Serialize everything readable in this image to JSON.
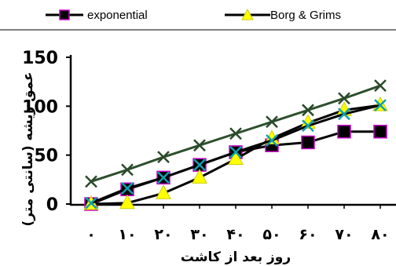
{
  "chart_data": {
    "type": "line",
    "x": [
      "۰",
      "۱۰",
      "۲۰",
      "۳۰",
      "۴۰",
      "۵۰",
      "۶۰",
      "۷۰",
      "۸۰"
    ],
    "xlabel": "روز بعد از کاشت",
    "ylabel": "عمق ریشه (سانتی متر)",
    "yticks": [
      "0",
      "50",
      "100",
      "150"
    ],
    "ylim": [
      0,
      150
    ],
    "grid": false,
    "legend_position": "top",
    "series": [
      {
        "name": "exponential",
        "line_color": "#000000",
        "marker": "square",
        "marker_fill": "#000000",
        "marker_edge": "#cc00cc",
        "values": [
          0,
          15,
          27,
          40,
          53,
          60,
          63,
          74,
          74
        ],
        "in_legend": true
      },
      {
        "name": "Borg & Grims",
        "line_color": "#000000",
        "marker": "triangle",
        "marker_fill": "#ffff00",
        "marker_edge": "#cccc00",
        "values": [
          0,
          1,
          11,
          27,
          46,
          67,
          83,
          96,
          101
        ],
        "in_legend": true
      },
      {
        "name": "",
        "line_color": "#2d4f2d",
        "marker": "x",
        "marker_fill": "none",
        "marker_edge": "#2a4a2a",
        "values": [
          23,
          35,
          48,
          60,
          72,
          84,
          96,
          108,
          121
        ],
        "in_legend": false
      },
      {
        "name": "",
        "line_color": "#000000",
        "marker": "x",
        "marker_fill": "none",
        "marker_edge": "#10a0b0",
        "values": [
          1,
          16,
          27,
          40,
          53,
          65,
          80,
          92,
          101
        ],
        "in_legend": false
      }
    ]
  }
}
